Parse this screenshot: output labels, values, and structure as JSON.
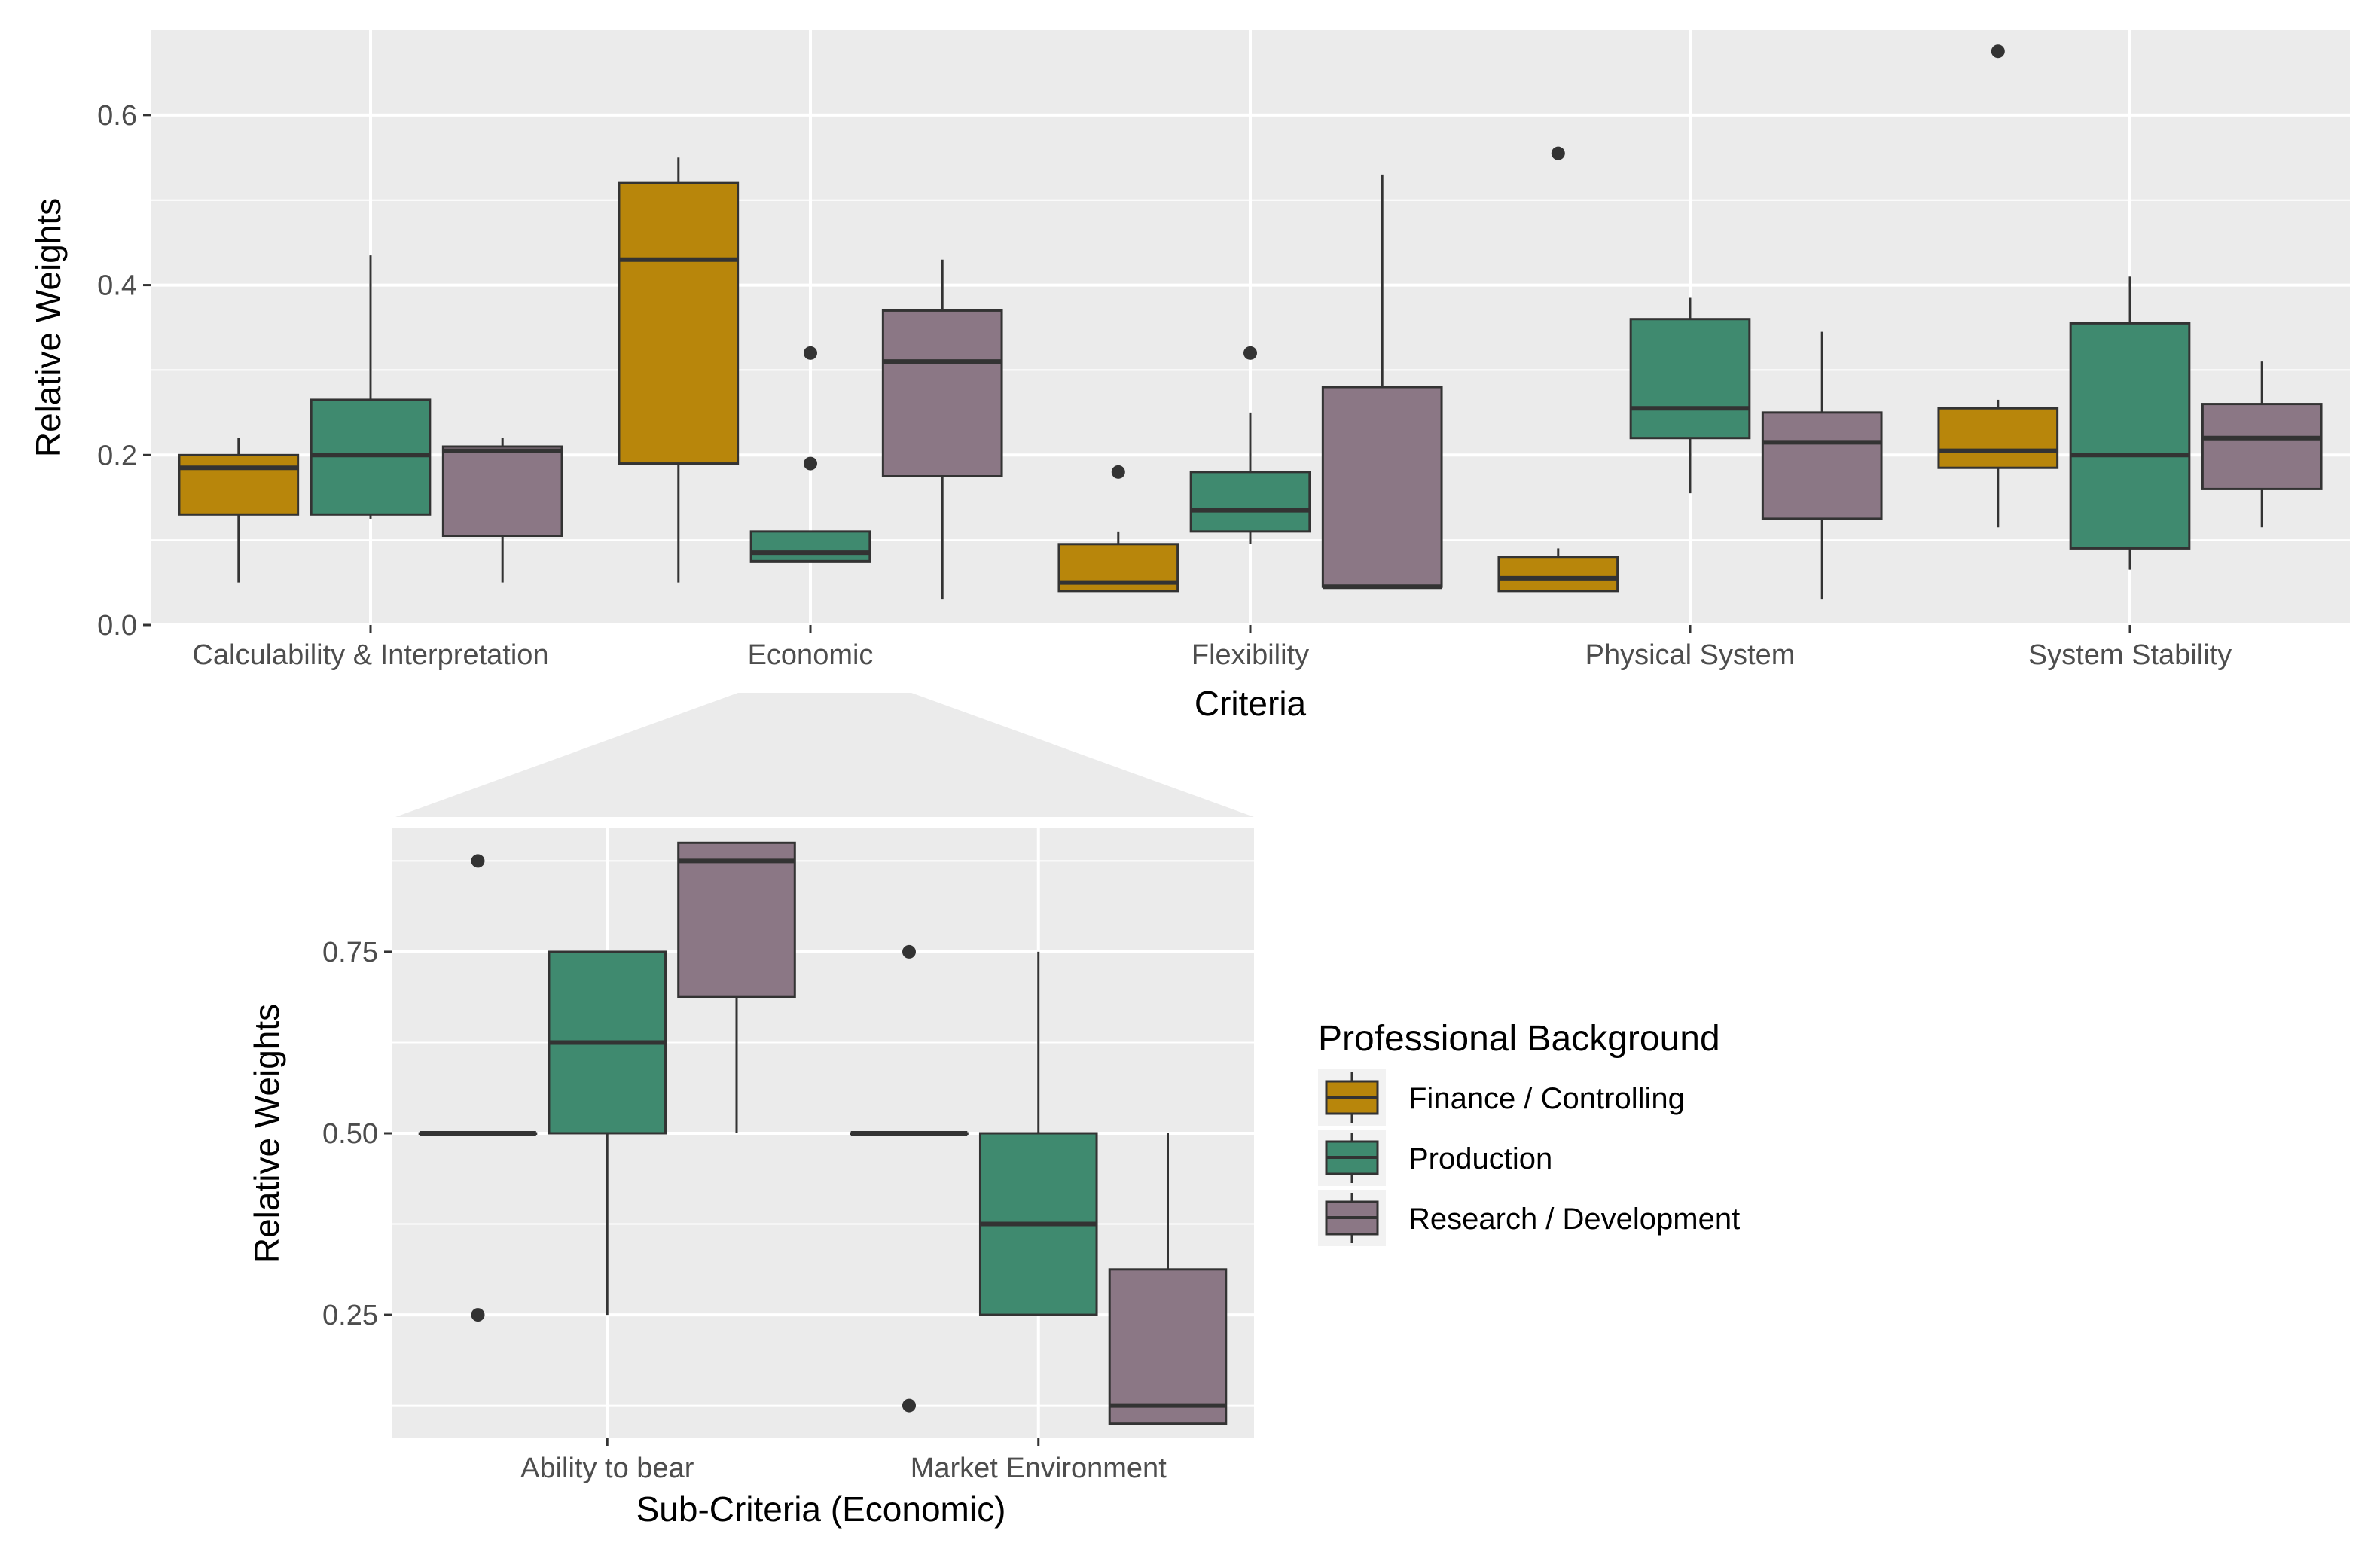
{
  "chart_data": [
    {
      "type": "box",
      "title": "",
      "xlabel": "Criteria",
      "ylabel": "Relative Weights",
      "ylim": [
        0,
        0.7
      ],
      "yticks": [
        "0.0",
        "0.2",
        "0.4",
        "0.6"
      ],
      "grid": true,
      "categories": [
        "Calculability & Interpretation",
        "Economic",
        "Flexibility",
        "Physical System",
        "System Stability"
      ],
      "series": [
        {
          "name": "Finance / Controlling",
          "boxes": [
            {
              "lower": 0.05,
              "q1": 0.13,
              "median": 0.185,
              "q3": 0.2,
              "upper": 0.22,
              "outliers": []
            },
            {
              "lower": 0.05,
              "q1": 0.19,
              "median": 0.43,
              "q3": 0.52,
              "upper": 0.55,
              "outliers": []
            },
            {
              "lower": 0.04,
              "q1": 0.04,
              "median": 0.05,
              "q3": 0.095,
              "upper": 0.11,
              "outliers": [
                0.18
              ]
            },
            {
              "lower": 0.04,
              "q1": 0.04,
              "median": 0.055,
              "q3": 0.08,
              "upper": 0.09,
              "outliers": [
                0.555
              ]
            },
            {
              "lower": 0.115,
              "q1": 0.185,
              "median": 0.205,
              "q3": 0.255,
              "upper": 0.265,
              "outliers": [
                0.675
              ]
            }
          ]
        },
        {
          "name": "Production",
          "boxes": [
            {
              "lower": 0.125,
              "q1": 0.13,
              "median": 0.2,
              "q3": 0.265,
              "upper": 0.435,
              "outliers": []
            },
            {
              "lower": 0.075,
              "q1": 0.075,
              "median": 0.085,
              "q3": 0.11,
              "upper": 0.11,
              "outliers": [
                0.19,
                0.32
              ]
            },
            {
              "lower": 0.095,
              "q1": 0.11,
              "median": 0.135,
              "q3": 0.18,
              "upper": 0.25,
              "outliers": [
                0.32
              ]
            },
            {
              "lower": 0.155,
              "q1": 0.22,
              "median": 0.255,
              "q3": 0.36,
              "upper": 0.385,
              "outliers": []
            },
            {
              "lower": 0.065,
              "q1": 0.09,
              "median": 0.2,
              "q3": 0.355,
              "upper": 0.41,
              "outliers": []
            }
          ]
        },
        {
          "name": "Research / Development",
          "boxes": [
            {
              "lower": 0.05,
              "q1": 0.105,
              "median": 0.205,
              "q3": 0.21,
              "upper": 0.22,
              "outliers": []
            },
            {
              "lower": 0.03,
              "q1": 0.175,
              "median": 0.31,
              "q3": 0.37,
              "upper": 0.43,
              "outliers": []
            },
            {
              "lower": 0.045,
              "q1": 0.045,
              "median": 0.045,
              "q3": 0.28,
              "upper": 0.53,
              "outliers": []
            },
            {
              "lower": 0.03,
              "q1": 0.125,
              "median": 0.215,
              "q3": 0.25,
              "upper": 0.345,
              "outliers": []
            },
            {
              "lower": 0.115,
              "q1": 0.16,
              "median": 0.22,
              "q3": 0.26,
              "upper": 0.31,
              "outliers": []
            }
          ]
        }
      ]
    },
    {
      "type": "box",
      "title": "",
      "xlabel": "Sub-Criteria (Economic)",
      "ylabel": "Relative Weights",
      "ylim": [
        0.08,
        0.92
      ],
      "yticks": [
        "0.25",
        "0.50",
        "0.75"
      ],
      "grid": true,
      "categories": [
        "Ability to bear",
        "Market Environment"
      ],
      "series": [
        {
          "name": "Finance / Controlling",
          "boxes": [
            {
              "lower": 0.5,
              "q1": 0.5,
              "median": 0.5,
              "q3": 0.5,
              "upper": 0.5,
              "outliers": [
                0.25,
                0.875
              ]
            },
            {
              "lower": 0.5,
              "q1": 0.5,
              "median": 0.5,
              "q3": 0.5,
              "upper": 0.5,
              "outliers": [
                0.125,
                0.75
              ]
            }
          ]
        },
        {
          "name": "Production",
          "boxes": [
            {
              "lower": 0.25,
              "q1": 0.5,
              "median": 0.625,
              "q3": 0.75,
              "upper": 0.75,
              "outliers": []
            },
            {
              "lower": 0.25,
              "q1": 0.25,
              "median": 0.375,
              "q3": 0.5,
              "upper": 0.75,
              "outliers": []
            }
          ]
        },
        {
          "name": "Research / Development",
          "boxes": [
            {
              "lower": 0.5,
              "q1": 0.6875,
              "median": 0.875,
              "q3": 0.9,
              "upper": 0.9,
              "outliers": []
            },
            {
              "lower": 0.1,
              "q1": 0.1,
              "median": 0.125,
              "q3": 0.3125,
              "upper": 0.5,
              "outliers": []
            }
          ]
        }
      ]
    }
  ],
  "legend": {
    "title": "Professional Background",
    "position": "right",
    "items": [
      {
        "label": "Finance / Controlling",
        "color": "#b8860b"
      },
      {
        "label": "Production",
        "color": "#3f8a6f"
      },
      {
        "label": "Research / Development",
        "color": "#8b7785"
      }
    ]
  },
  "zoom_connector": {
    "from_category": "Economic",
    "color": "#ebebeb"
  },
  "colors": {
    "panel": "#ebebeb",
    "grid": "#ffffff",
    "box_line": "#333333",
    "tick_text": "#4d4d4d"
  }
}
